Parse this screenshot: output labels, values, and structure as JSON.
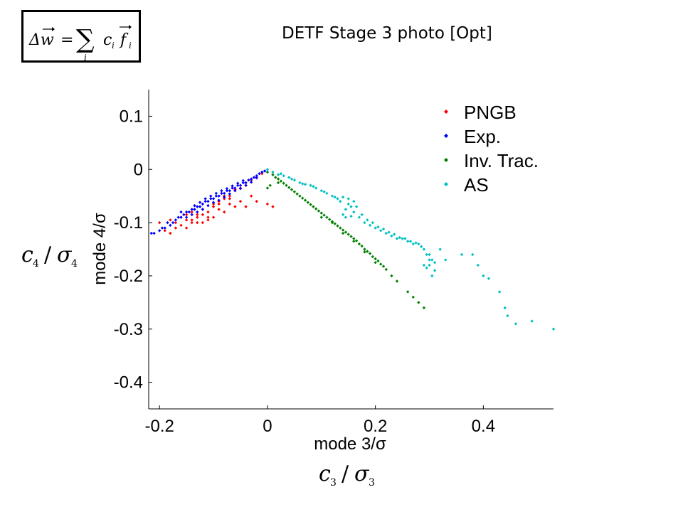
{
  "slide": {
    "title": "DETF Stage 3 photo [Opt]",
    "formula": {
      "lhs": "Δw",
      "equals": "=",
      "sum": "∑",
      "sum_index": "i",
      "coef": "c",
      "coef_index": "i",
      "func": "f",
      "func_index": "i"
    },
    "y_annotation": {
      "base": "c",
      "sub": "4",
      "slash": "/",
      "sigma": "σ",
      "sigma_sub": "4"
    },
    "x_annotation": {
      "base": "c",
      "sub": "3",
      "slash": "/",
      "sigma": "σ",
      "sigma_sub": "3"
    }
  },
  "chart_data": {
    "type": "scatter",
    "xlabel": "mode 3/σ",
    "ylabel": "mode 4/σ",
    "xlim": [
      -0.22,
      0.53
    ],
    "ylim": [
      -0.45,
      0.15
    ],
    "xticks": [
      -0.2,
      0,
      0.2,
      0.4
    ],
    "xtick_labels": [
      "-0.2",
      "0",
      "0.2",
      "0.4"
    ],
    "yticks": [
      0.1,
      0,
      -0.1,
      -0.2,
      -0.3,
      -0.4
    ],
    "ytick_labels": [
      "0.1",
      "0",
      "-0.1",
      "-0.2",
      "-0.3",
      "-0.4"
    ],
    "grid": false,
    "legend_position": "top-right",
    "series": [
      {
        "name": "PNGB",
        "color": "#ff0000",
        "points": [
          [
            -0.2,
            -0.1
          ],
          [
            -0.19,
            -0.115
          ],
          [
            -0.18,
            -0.12
          ],
          [
            -0.17,
            -0.1
          ],
          [
            -0.16,
            -0.105
          ],
          [
            -0.15,
            -0.11
          ],
          [
            -0.14,
            -0.1
          ],
          [
            -0.13,
            -0.09
          ],
          [
            -0.12,
            -0.085
          ],
          [
            -0.11,
            -0.08
          ],
          [
            -0.1,
            -0.07
          ],
          [
            -0.09,
            -0.06
          ],
          [
            -0.08,
            -0.055
          ],
          [
            -0.07,
            -0.05
          ],
          [
            -0.06,
            -0.04
          ],
          [
            -0.05,
            -0.035
          ],
          [
            -0.04,
            -0.03
          ],
          [
            -0.03,
            -0.02
          ],
          [
            -0.02,
            -0.015
          ],
          [
            -0.01,
            -0.008
          ],
          [
            -0.18,
            -0.095
          ],
          [
            -0.16,
            -0.09
          ],
          [
            -0.15,
            -0.085
          ],
          [
            -0.14,
            -0.08
          ],
          [
            -0.12,
            -0.075
          ],
          [
            -0.1,
            -0.065
          ],
          [
            -0.08,
            -0.05
          ],
          [
            -0.06,
            -0.038
          ],
          [
            -0.04,
            -0.025
          ],
          [
            -0.13,
            -0.1
          ],
          [
            -0.11,
            -0.09
          ],
          [
            -0.09,
            -0.075
          ],
          [
            -0.07,
            -0.065
          ],
          [
            -0.05,
            -0.06
          ],
          [
            -0.03,
            -0.05
          ],
          [
            -0.12,
            -0.1
          ],
          [
            -0.1,
            -0.09
          ],
          [
            -0.08,
            -0.08
          ],
          [
            -0.06,
            -0.07
          ],
          [
            -0.02,
            -0.06
          ],
          [
            0.01,
            -0.07
          ],
          [
            0.0,
            -0.065
          ],
          [
            -0.04,
            -0.07
          ],
          [
            -0.11,
            -0.095
          ],
          [
            -0.14,
            -0.095
          ],
          [
            -0.17,
            -0.11
          ],
          [
            -0.15,
            -0.095
          ],
          [
            -0.13,
            -0.085
          ],
          [
            -0.09,
            -0.065
          ],
          [
            -0.07,
            -0.055
          ]
        ]
      },
      {
        "name": "Exp.",
        "color": "#0000ff",
        "points": [
          [
            -0.215,
            -0.12
          ],
          [
            -0.21,
            -0.12
          ],
          [
            -0.2,
            -0.115
          ],
          [
            -0.195,
            -0.11
          ],
          [
            -0.19,
            -0.11
          ],
          [
            -0.185,
            -0.1
          ],
          [
            -0.18,
            -0.105
          ],
          [
            -0.175,
            -0.1
          ],
          [
            -0.17,
            -0.095
          ],
          [
            -0.165,
            -0.09
          ],
          [
            -0.16,
            -0.09
          ],
          [
            -0.155,
            -0.085
          ],
          [
            -0.15,
            -0.08
          ],
          [
            -0.145,
            -0.08
          ],
          [
            -0.14,
            -0.075
          ],
          [
            -0.135,
            -0.075
          ],
          [
            -0.13,
            -0.07
          ],
          [
            -0.125,
            -0.07
          ],
          [
            -0.12,
            -0.065
          ],
          [
            -0.115,
            -0.06
          ],
          [
            -0.11,
            -0.06
          ],
          [
            -0.105,
            -0.055
          ],
          [
            -0.1,
            -0.055
          ],
          [
            -0.095,
            -0.05
          ],
          [
            -0.09,
            -0.05
          ],
          [
            -0.085,
            -0.045
          ],
          [
            -0.08,
            -0.045
          ],
          [
            -0.075,
            -0.04
          ],
          [
            -0.07,
            -0.04
          ],
          [
            -0.065,
            -0.035
          ],
          [
            -0.06,
            -0.035
          ],
          [
            -0.055,
            -0.03
          ],
          [
            -0.05,
            -0.03
          ],
          [
            -0.045,
            -0.025
          ],
          [
            -0.04,
            -0.025
          ],
          [
            -0.035,
            -0.02
          ],
          [
            -0.03,
            -0.018
          ],
          [
            -0.025,
            -0.015
          ],
          [
            -0.02,
            -0.012
          ],
          [
            -0.015,
            -0.008
          ],
          [
            -0.01,
            -0.005
          ],
          [
            -0.005,
            -0.003
          ],
          [
            -0.16,
            -0.08
          ],
          [
            -0.15,
            -0.09
          ],
          [
            -0.14,
            -0.085
          ],
          [
            -0.13,
            -0.08
          ],
          [
            -0.12,
            -0.075
          ],
          [
            -0.11,
            -0.068
          ],
          [
            -0.1,
            -0.062
          ],
          [
            -0.09,
            -0.058
          ],
          [
            -0.08,
            -0.052
          ],
          [
            -0.07,
            -0.046
          ],
          [
            -0.06,
            -0.04
          ],
          [
            -0.05,
            -0.036
          ],
          [
            -0.04,
            -0.03
          ],
          [
            -0.03,
            -0.024
          ],
          [
            -0.02,
            -0.016
          ],
          [
            -0.135,
            -0.068
          ],
          [
            -0.125,
            -0.062
          ],
          [
            -0.115,
            -0.055
          ],
          [
            -0.105,
            -0.05
          ],
          [
            -0.095,
            -0.045
          ],
          [
            -0.085,
            -0.04
          ],
          [
            -0.075,
            -0.036
          ],
          [
            -0.065,
            -0.031
          ],
          [
            -0.055,
            -0.026
          ],
          [
            -0.045,
            -0.021
          ]
        ]
      },
      {
        "name": "Inv. Trac.",
        "color": "#008000",
        "points": [
          [
            0.0,
            -0.005
          ],
          [
            0.01,
            -0.01
          ],
          [
            0.02,
            -0.018
          ],
          [
            0.03,
            -0.026
          ],
          [
            0.04,
            -0.034
          ],
          [
            0.05,
            -0.042
          ],
          [
            0.06,
            -0.05
          ],
          [
            0.07,
            -0.058
          ],
          [
            0.08,
            -0.066
          ],
          [
            0.09,
            -0.074
          ],
          [
            0.1,
            -0.082
          ],
          [
            0.11,
            -0.09
          ],
          [
            0.12,
            -0.098
          ],
          [
            0.13,
            -0.106
          ],
          [
            0.14,
            -0.114
          ],
          [
            0.15,
            -0.122
          ],
          [
            0.16,
            -0.13
          ],
          [
            0.17,
            -0.14
          ],
          [
            0.18,
            -0.15
          ],
          [
            0.19,
            -0.158
          ],
          [
            0.2,
            -0.168
          ],
          [
            0.21,
            -0.178
          ],
          [
            0.22,
            -0.188
          ],
          [
            0.015,
            -0.015
          ],
          [
            0.025,
            -0.022
          ],
          [
            0.035,
            -0.03
          ],
          [
            0.045,
            -0.038
          ],
          [
            0.055,
            -0.046
          ],
          [
            0.065,
            -0.054
          ],
          [
            0.075,
            -0.062
          ],
          [
            0.085,
            -0.07
          ],
          [
            0.095,
            -0.078
          ],
          [
            0.105,
            -0.086
          ],
          [
            0.115,
            -0.094
          ],
          [
            0.125,
            -0.102
          ],
          [
            0.135,
            -0.11
          ],
          [
            0.145,
            -0.118
          ],
          [
            0.155,
            -0.126
          ],
          [
            0.165,
            -0.134
          ],
          [
            0.175,
            -0.144
          ],
          [
            0.185,
            -0.154
          ],
          [
            0.195,
            -0.164
          ],
          [
            0.205,
            -0.172
          ],
          [
            0.215,
            -0.182
          ],
          [
            0.23,
            -0.2
          ],
          [
            0.24,
            -0.21
          ],
          [
            0.26,
            -0.23
          ],
          [
            0.27,
            -0.24
          ],
          [
            0.28,
            -0.25
          ],
          [
            0.29,
            -0.26
          ],
          [
            0.02,
            -0.025
          ],
          [
            0.005,
            -0.03
          ],
          [
            0.0,
            -0.035
          ],
          [
            0.1,
            -0.09
          ],
          [
            0.12,
            -0.1
          ],
          [
            0.14,
            -0.12
          ],
          [
            0.16,
            -0.135
          ],
          [
            0.18,
            -0.155
          ],
          [
            0.2,
            -0.175
          ]
        ]
      },
      {
        "name": "AS",
        "color": "#00c0c0",
        "points": [
          [
            0.0,
            0.0
          ],
          [
            0.01,
            -0.005
          ],
          [
            0.02,
            -0.01
          ],
          [
            0.03,
            -0.012
          ],
          [
            0.04,
            -0.015
          ],
          [
            0.05,
            -0.02
          ],
          [
            0.06,
            -0.025
          ],
          [
            0.07,
            -0.028
          ],
          [
            0.08,
            -0.03
          ],
          [
            0.09,
            -0.035
          ],
          [
            0.1,
            -0.04
          ],
          [
            0.11,
            -0.045
          ],
          [
            0.12,
            -0.05
          ],
          [
            0.13,
            -0.055
          ],
          [
            0.14,
            -0.052
          ],
          [
            0.15,
            -0.055
          ],
          [
            0.16,
            -0.06
          ],
          [
            0.155,
            -0.07
          ],
          [
            0.145,
            -0.075
          ],
          [
            0.14,
            -0.085
          ],
          [
            0.145,
            -0.09
          ],
          [
            0.155,
            -0.088
          ],
          [
            0.16,
            -0.08
          ],
          [
            0.17,
            -0.09
          ],
          [
            0.18,
            -0.1
          ],
          [
            0.19,
            -0.105
          ],
          [
            0.2,
            -0.11
          ],
          [
            0.21,
            -0.115
          ],
          [
            0.22,
            -0.12
          ],
          [
            0.23,
            -0.125
          ],
          [
            0.24,
            -0.13
          ],
          [
            0.25,
            -0.13
          ],
          [
            0.26,
            -0.135
          ],
          [
            0.27,
            -0.14
          ],
          [
            0.28,
            -0.14
          ],
          [
            0.29,
            -0.15
          ],
          [
            0.3,
            -0.16
          ],
          [
            0.3,
            -0.18
          ],
          [
            0.305,
            -0.17
          ],
          [
            0.31,
            -0.19
          ],
          [
            0.295,
            -0.185
          ],
          [
            0.29,
            -0.18
          ],
          [
            0.305,
            -0.2
          ],
          [
            0.32,
            -0.15
          ],
          [
            0.33,
            -0.17
          ],
          [
            0.36,
            -0.16
          ],
          [
            0.38,
            -0.16
          ],
          [
            0.39,
            -0.18
          ],
          [
            0.4,
            -0.2
          ],
          [
            0.41,
            -0.205
          ],
          [
            0.43,
            -0.23
          ],
          [
            0.44,
            -0.26
          ],
          [
            0.445,
            -0.275
          ],
          [
            0.46,
            -0.29
          ],
          [
            0.49,
            -0.285
          ],
          [
            0.53,
            -0.3
          ],
          [
            0.025,
            -0.008
          ],
          [
            0.045,
            -0.018
          ],
          [
            0.065,
            -0.027
          ],
          [
            0.085,
            -0.032
          ],
          [
            0.105,
            -0.042
          ],
          [
            0.125,
            -0.052
          ],
          [
            0.135,
            -0.06
          ],
          [
            0.15,
            -0.065
          ],
          [
            0.165,
            -0.07
          ],
          [
            0.175,
            -0.085
          ],
          [
            0.185,
            -0.095
          ],
          [
            0.195,
            -0.1
          ],
          [
            0.205,
            -0.108
          ],
          [
            0.215,
            -0.112
          ],
          [
            0.225,
            -0.118
          ],
          [
            0.235,
            -0.122
          ],
          [
            0.245,
            -0.128
          ],
          [
            0.255,
            -0.13
          ],
          [
            0.265,
            -0.135
          ],
          [
            0.275,
            -0.138
          ],
          [
            0.285,
            -0.145
          ],
          [
            0.295,
            -0.16
          ],
          [
            0.3,
            -0.17
          ],
          [
            0.31,
            -0.175
          ]
        ]
      }
    ]
  }
}
